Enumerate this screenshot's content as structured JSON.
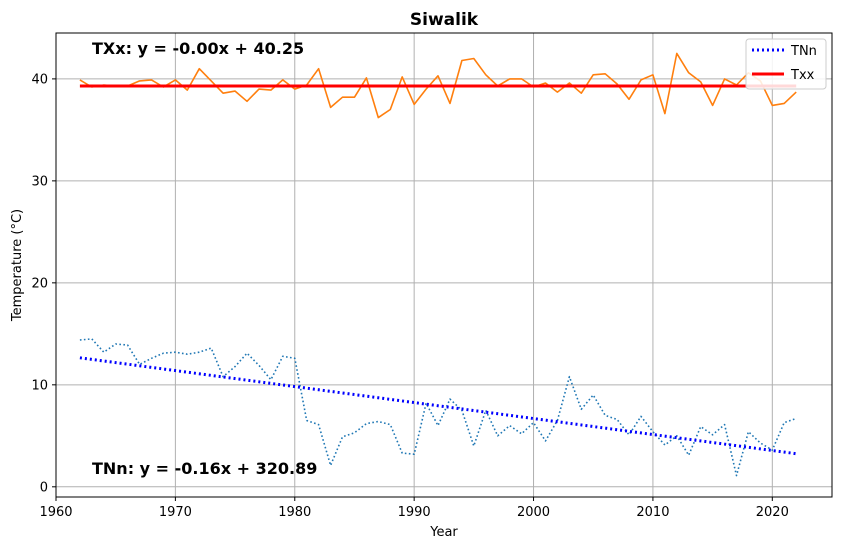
{
  "chart_data": {
    "type": "line",
    "title": "Siwalik",
    "xlabel": "Year",
    "ylabel": "Temperature (°C)",
    "xlim": [
      1960,
      2025
    ],
    "ylim": [
      -1,
      44.5
    ],
    "x_ticks": [
      1960,
      1970,
      1980,
      1990,
      2000,
      2010,
      2020
    ],
    "y_ticks": [
      0,
      10,
      20,
      30,
      40
    ],
    "grid": true,
    "legend_position": "top-right",
    "annotations": [
      {
        "text": "TXx: y = -0.00x + 40.25",
        "position": "top-left"
      },
      {
        "text": "TNn: y = -0.16x + 320.89",
        "position": "bottom-left"
      }
    ],
    "x": [
      1962,
      1963,
      1964,
      1965,
      1966,
      1967,
      1968,
      1969,
      1970,
      1971,
      1972,
      1973,
      1974,
      1975,
      1976,
      1977,
      1978,
      1979,
      1980,
      1981,
      1982,
      1983,
      1984,
      1985,
      1986,
      1987,
      1988,
      1989,
      1990,
      1991,
      1992,
      1993,
      1994,
      1995,
      1996,
      1997,
      1998,
      1999,
      2000,
      2001,
      2002,
      2003,
      2004,
      2005,
      2006,
      2007,
      2008,
      2009,
      2010,
      2011,
      2012,
      2013,
      2014,
      2015,
      2016,
      2017,
      2018,
      2019,
      2020,
      2021,
      2022
    ],
    "series": [
      {
        "key": "txx_obs",
        "color": "#ff7f0e",
        "style": "solid",
        "values": [
          39.9,
          39.2,
          39.4,
          39.3,
          39.3,
          39.8,
          39.9,
          39.2,
          39.9,
          38.9,
          41.0,
          39.8,
          38.6,
          38.8,
          37.8,
          39.0,
          38.9,
          39.9,
          39.0,
          39.4,
          41.0,
          37.2,
          38.2,
          38.2,
          40.1,
          36.2,
          37.0,
          40.2,
          37.5,
          39.0,
          40.3,
          37.6,
          41.8,
          42.0,
          40.4,
          39.3,
          40.0,
          40.0,
          39.2,
          39.6,
          38.7,
          39.6,
          38.6,
          40.4,
          40.5,
          39.5,
          38.0,
          39.9,
          40.4,
          36.6,
          42.5,
          40.6,
          39.7,
          37.4,
          40.0,
          39.4,
          40.6,
          39.8,
          37.4,
          37.6,
          38.7
        ]
      },
      {
        "key": "tnn_obs",
        "color": "#1f77b4",
        "style": "dotted",
        "values": [
          14.4,
          14.5,
          13.2,
          14.0,
          13.9,
          12.0,
          12.6,
          13.1,
          13.2,
          13.0,
          13.2,
          13.6,
          10.8,
          11.8,
          13.1,
          11.9,
          10.5,
          12.8,
          12.6,
          6.5,
          6.1,
          2.1,
          4.9,
          5.3,
          6.2,
          6.4,
          6.1,
          3.3,
          3.2,
          8.2,
          6.0,
          8.6,
          7.5,
          4.0,
          7.5,
          5.0,
          6.0,
          5.2,
          6.3,
          4.5,
          6.5,
          10.8,
          7.6,
          9.0,
          7.0,
          6.6,
          5.1,
          6.9,
          5.4,
          4.1,
          5.0,
          3.1,
          5.9,
          5.1,
          6.1,
          1.1,
          5.4,
          4.3,
          3.6,
          6.3,
          6.7
        ]
      },
      {
        "key": "tnn_trend",
        "name": "TNn",
        "color": "#0000ff",
        "style": "dotted",
        "trend_endpoints": {
          "x": [
            1962,
            2022
          ],
          "y": [
            12.65,
            3.25
          ]
        }
      },
      {
        "key": "txx_trend",
        "name": "Txx",
        "color": "#ff0000",
        "style": "solid",
        "trend_endpoints": {
          "x": [
            1962,
            2022
          ],
          "y": [
            39.3,
            39.3
          ]
        }
      }
    ]
  }
}
